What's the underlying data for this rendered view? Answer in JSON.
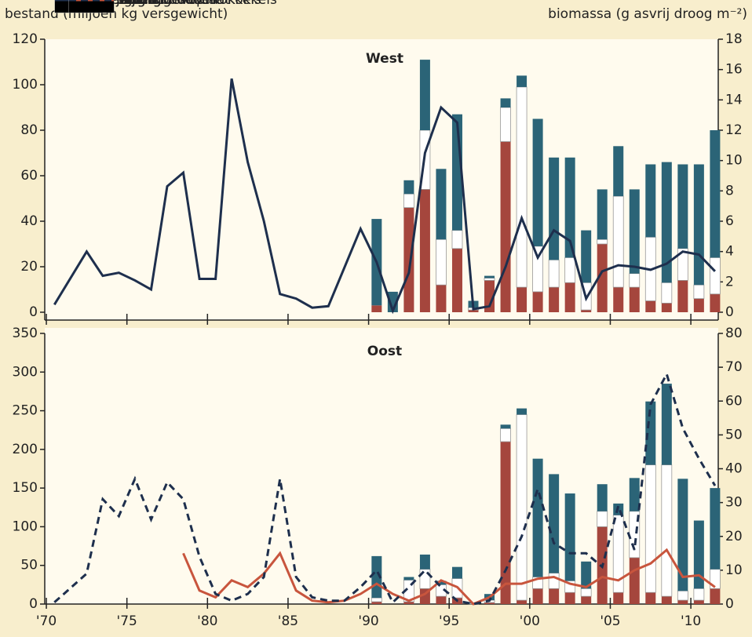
{
  "chart_data": [
    {
      "type": "combo",
      "title": "West",
      "ylabel": "bestand (miljoen kg versgewicht)",
      "y2label": "biomassa (g asvrij droog m⁻²)",
      "x": [
        1990,
        1991,
        1992,
        1993,
        1994,
        1995,
        1996,
        1997,
        1998,
        1999,
        2000,
        2001,
        2002,
        2003,
        2004,
        2005,
        2006,
        2007,
        2008,
        2009,
        2010,
        2011
      ],
      "series": [
        {
          "name": "bestand oudere kokkels",
          "color": "#2b6477",
          "values": [
            38,
            9,
            6,
            31,
            31,
            51,
            3,
            1,
            4,
            5,
            56,
            45,
            44,
            23,
            22,
            22,
            37,
            32,
            53,
            37,
            53,
            56
          ]
        },
        {
          "name": "2-jarig",
          "color": "#ffffff",
          "values": [
            0,
            0,
            6,
            26,
            20,
            8,
            1,
            1,
            15,
            88,
            20,
            12,
            11,
            12,
            2,
            40,
            6,
            28,
            9,
            14,
            6,
            16
          ]
        },
        {
          "name": "1-jarig",
          "color": "#a5463d",
          "values": [
            3,
            0,
            46,
            54,
            12,
            28,
            1,
            14,
            75,
            11,
            9,
            11,
            13,
            1,
            30,
            11,
            11,
            5,
            4,
            14,
            6,
            8
          ]
        },
        {
          "name": "broed",
          "color": "#000000",
          "values": [
            0,
            0,
            0,
            0,
            0,
            0,
            0,
            0,
            0,
            0,
            0,
            0,
            0,
            0,
            0,
            0,
            0,
            0,
            0,
            0,
            0,
            0
          ]
        },
        {
          "name": "Balgzand",
          "color": "#1e2f4d",
          "type": "line",
          "axis": "y2",
          "line_style": "solid",
          "x": [
            1970,
            1972,
            1973,
            1974,
            1975,
            1976,
            1977,
            1978,
            1979,
            1980,
            1981,
            1982,
            1983,
            1984,
            1985,
            1986,
            1987,
            1989,
            1990,
            1991,
            1992,
            1993,
            1994,
            1995,
            1996,
            1997,
            1998,
            1999,
            2000,
            2001,
            2002,
            2003,
            2004,
            2005,
            2006,
            2007,
            2008,
            2009,
            2010,
            2011
          ],
          "values": [
            0.5,
            4,
            2.4,
            2.6,
            2.1,
            1.5,
            8.3,
            9.2,
            2.2,
            2.2,
            15.4,
            9.9,
            6,
            1.2,
            0.9,
            0.3,
            0.4,
            5.5,
            3.3,
            0.1,
            2.6,
            10.5,
            13.5,
            12.5,
            0.2,
            0.4,
            3,
            6.2,
            3.6,
            5.4,
            4.7,
            0.9,
            2.7,
            3.1,
            3,
            2.8,
            3.2,
            4,
            3.8,
            2.7
          ]
        }
      ],
      "ylim": [
        0,
        120
      ],
      "yticks": [
        0,
        20,
        40,
        60,
        80,
        100,
        120
      ],
      "y2lim": [
        0,
        18
      ],
      "y2ticks": [
        0,
        2,
        4,
        6,
        8,
        10,
        12,
        14,
        16,
        18
      ],
      "legend": "upper left"
    },
    {
      "type": "combo",
      "title": "Oost",
      "x": [
        1990,
        1991,
        1992,
        1993,
        1994,
        1995,
        1996,
        1997,
        1998,
        1999,
        2000,
        2001,
        2002,
        2003,
        2004,
        2005,
        2006,
        2007,
        2008,
        2009,
        2010,
        2011
      ],
      "series": [
        {
          "name": "bestand oudere kokkels",
          "color": "#2b6477",
          "values": [
            54,
            0,
            4,
            19,
            5,
            15,
            1,
            8,
            5,
            8,
            153,
            128,
            113,
            35,
            35,
            15,
            43,
            82,
            105,
            145,
            88,
            105
          ]
        },
        {
          "name": "2-jarig",
          "color": "#ffffff",
          "values": [
            5,
            0,
            28,
            25,
            15,
            25,
            1,
            3,
            17,
            240,
            15,
            20,
            15,
            10,
            20,
            100,
            60,
            165,
            170,
            12,
            15,
            25
          ]
        },
        {
          "name": "1-jarig",
          "color": "#a5463d",
          "values": [
            3,
            0,
            3,
            20,
            10,
            8,
            0,
            2,
            210,
            5,
            20,
            20,
            15,
            10,
            100,
            15,
            60,
            15,
            10,
            5,
            5,
            20
          ]
        },
        {
          "name": "broed",
          "color": "#000000",
          "values": [
            0,
            0,
            0,
            0,
            0,
            0,
            0,
            0,
            0,
            0,
            0,
            0,
            0,
            0,
            0,
            0,
            0,
            0,
            0,
            0,
            0,
            0
          ]
        },
        {
          "name": "Piet Scheveplaat",
          "color": "#c8553d",
          "type": "line",
          "axis": "y2",
          "line_style": "solid",
          "x": [
            1978,
            1979,
            1980,
            1981,
            1982,
            1983,
            1984,
            1985,
            1986,
            1987,
            1988,
            1989,
            1990,
            1991,
            1992,
            1993,
            1994,
            1995,
            1996,
            1997,
            1998,
            1999,
            2000,
            2001,
            2002,
            2003,
            2004,
            2005,
            2006,
            2007,
            2008,
            2009,
            2010,
            2011
          ],
          "values": [
            15,
            4,
            2,
            7,
            5,
            9,
            15,
            4,
            1,
            0.5,
            1,
            3,
            6,
            3,
            1,
            3,
            7,
            5,
            0,
            2,
            6,
            6,
            7.5,
            8,
            6,
            5,
            8,
            7,
            10,
            12,
            16,
            8,
            8.5,
            5
          ]
        },
        {
          "name": "Groninger Wad",
          "color": "#1e2f4d",
          "type": "line",
          "axis": "y2",
          "line_style": "dashed",
          "x": [
            1970,
            1972,
            1973,
            1974,
            1975,
            1976,
            1977,
            1978,
            1979,
            1980,
            1981,
            1982,
            1983,
            1984,
            1985,
            1986,
            1987,
            1988,
            1989,
            1990,
            1991,
            1992,
            1993,
            1994,
            1995,
            1996,
            1997,
            1998,
            1999,
            2000,
            2001,
            2002,
            2003,
            2004,
            2005,
            2006,
            2007,
            2008,
            2009,
            2010,
            2011
          ],
          "values": [
            0.5,
            9,
            31,
            26,
            37,
            25,
            36,
            31,
            14,
            3,
            1,
            3,
            8,
            37,
            8,
            2,
            1,
            1,
            5,
            10,
            0.5,
            5,
            10,
            5,
            1,
            0,
            1,
            10,
            20,
            34,
            18,
            15,
            15,
            11,
            29,
            16,
            59,
            68,
            52,
            43,
            35
          ]
        }
      ],
      "xlim": [
        1969.9,
        2011.7
      ],
      "xticks": [
        {
          "value": 1970,
          "label": "'70"
        },
        {
          "value": 1975,
          "label": "'75"
        },
        {
          "value": 1980,
          "label": "'80"
        },
        {
          "value": 1985,
          "label": "'85"
        },
        {
          "value": 1990,
          "label": "'90"
        },
        {
          "value": 1995,
          "label": "'95"
        },
        {
          "value": 2000,
          "label": "'00"
        },
        {
          "value": 2005,
          "label": "'05"
        },
        {
          "value": 2010,
          "label": "'10"
        }
      ],
      "ylim": [
        0,
        350
      ],
      "yticks": [
        0,
        50,
        100,
        150,
        200,
        250,
        300,
        350
      ],
      "y2lim": [
        0,
        80
      ],
      "y2ticks": [
        0,
        10,
        20,
        30,
        40,
        50,
        60,
        70,
        80
      ],
      "legend": "upper left"
    }
  ]
}
